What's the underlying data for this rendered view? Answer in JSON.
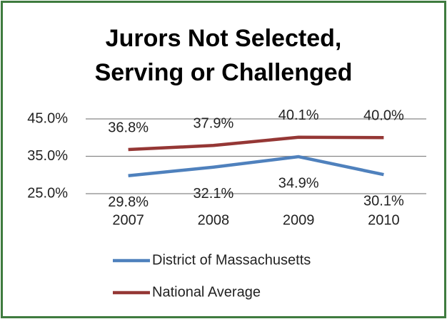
{
  "chart_data": {
    "type": "line",
    "title": "Jurors Not Selected, Serving or Challenged",
    "categories": [
      "2007",
      "2008",
      "2009",
      "2010"
    ],
    "series": [
      {
        "name": "District of Massachusetts",
        "color": "#4f81bd",
        "values": [
          29.8,
          32.1,
          34.9,
          30.1
        ],
        "value_labels": [
          "29.8%",
          "32.1%",
          "34.9%",
          "30.1%"
        ]
      },
      {
        "name": "National Average",
        "color": "#953735",
        "values": [
          36.8,
          37.9,
          40.1,
          40.0
        ],
        "value_labels": [
          "36.8%",
          "37.9%",
          "40.1%",
          "40.0%"
        ]
      }
    ],
    "ylim": [
      25,
      45
    ],
    "yticks": [
      {
        "value": 25,
        "label": "25.0%"
      },
      {
        "value": 35,
        "label": "35.0%"
      },
      {
        "value": 45,
        "label": "45.0%"
      }
    ],
    "grid": true,
    "legend": "bottom"
  }
}
